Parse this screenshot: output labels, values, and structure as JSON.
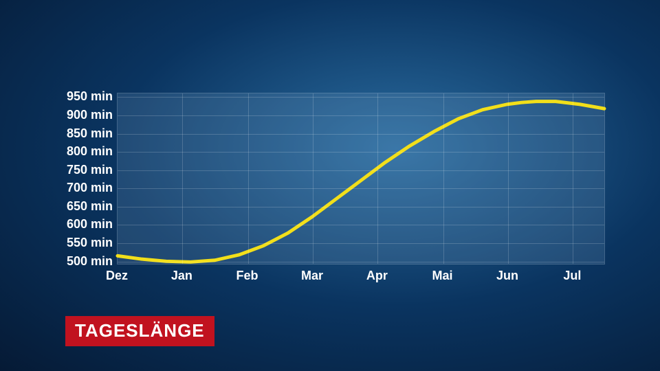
{
  "chart": {
    "type": "line",
    "ylim": [
      490,
      960
    ],
    "ytick_step": 50,
    "y_ticks": [
      500,
      550,
      600,
      650,
      700,
      750,
      800,
      850,
      900,
      950
    ],
    "y_unit": "min",
    "x_labels": [
      "Dez",
      "Jan",
      "Feb",
      "Mar",
      "Apr",
      "Mai",
      "Jun",
      "Jul"
    ],
    "x_positions": [
      0.0,
      0.133,
      0.267,
      0.4,
      0.533,
      0.667,
      0.8,
      0.933
    ],
    "grid_v_positions": [
      0.133,
      0.267,
      0.4,
      0.533,
      0.667,
      0.8,
      0.933
    ],
    "series": {
      "x": [
        0.0,
        0.05,
        0.1,
        0.15,
        0.2,
        0.25,
        0.3,
        0.35,
        0.4,
        0.45,
        0.5,
        0.55,
        0.6,
        0.65,
        0.7,
        0.75,
        0.8,
        0.83,
        0.86,
        0.9,
        0.95,
        1.0
      ],
      "y": [
        512,
        503,
        497,
        495,
        500,
        515,
        540,
        575,
        620,
        670,
        720,
        770,
        815,
        855,
        890,
        915,
        930,
        935,
        938,
        938,
        930,
        918
      ]
    },
    "line_color": "#f2df1a",
    "line_width": 5,
    "plot_bg": "rgba(120,160,195,0.22)",
    "grid_color": "rgba(255,255,255,0.18)",
    "tick_color": "#ffffff",
    "tick_fontsize": 18,
    "tick_fontweight": 700
  },
  "badge": {
    "label": "TAGESLÄNGE",
    "bg": "#c1121f",
    "color": "#ffffff",
    "fontsize": 26
  },
  "background": {
    "gradient_center": "#2a6ca0",
    "gradient_mid": "#0a3460",
    "gradient_edge": "#051a35"
  }
}
